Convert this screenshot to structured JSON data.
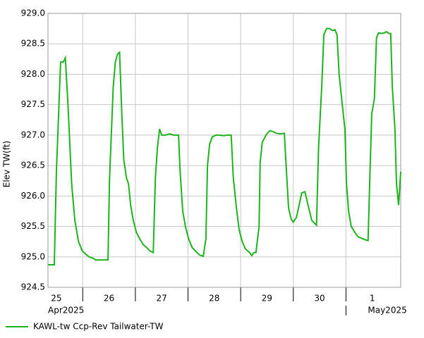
{
  "chart_data": {
    "type": "line",
    "y_label": "Elev TW(ft)",
    "xlim": [
      25.34,
      32.04
    ],
    "xticks": [
      26,
      27,
      28,
      29,
      30,
      31
    ],
    "day_labels": [
      {
        "value": 25.5,
        "label": "25"
      },
      {
        "value": 26.5,
        "label": "26"
      },
      {
        "value": 27.5,
        "label": "27"
      },
      {
        "value": 28.5,
        "label": "28"
      },
      {
        "value": 29.5,
        "label": "29"
      },
      {
        "value": 30.5,
        "label": "30"
      },
      {
        "value": 31.5,
        "label": "1"
      }
    ],
    "months": [
      {
        "value": 25.34,
        "label": "Apr2025"
      },
      {
        "value": 31,
        "label": "May2025"
      }
    ],
    "ylim": [
      924.5,
      929.0
    ],
    "yticks": [
      924.5,
      {
        "value": 925,
        "label": "925.0"
      },
      925.5,
      {
        "value": 926,
        "label": "926.0"
      },
      926.5,
      {
        "value": 927,
        "label": "927.0"
      },
      927.5,
      {
        "value": 928,
        "label": "928.0"
      },
      928.5,
      {
        "value": 929,
        "label": "929.0"
      }
    ],
    "grid": true,
    "x": [
      25.34,
      25.46,
      25.5,
      25.58,
      25.63,
      25.67,
      25.72,
      25.79,
      25.85,
      25.92,
      25.99,
      26.05,
      26.12,
      26.19,
      26.25,
      26.37,
      26.48,
      26.51,
      26.58,
      26.62,
      26.66,
      26.7,
      26.74,
      26.78,
      26.83,
      26.87,
      26.91,
      26.96,
      27.02,
      27.08,
      27.15,
      27.22,
      27.27,
      27.34,
      27.38,
      27.42,
      27.46,
      27.5,
      27.57,
      27.65,
      27.73,
      27.82,
      27.85,
      27.9,
      27.95,
      28.01,
      28.08,
      28.16,
      28.22,
      28.29,
      28.34,
      28.37,
      28.41,
      28.46,
      28.53,
      28.6,
      28.68,
      28.74,
      28.82,
      28.86,
      28.92,
      28.97,
      29.03,
      29.09,
      29.17,
      29.21,
      29.25,
      29.29,
      29.35,
      29.37,
      29.41,
      29.48,
      29.55,
      29.61,
      29.68,
      29.75,
      29.83,
      29.87,
      29.91,
      29.96,
      30.0,
      30.06,
      30.11,
      30.16,
      30.22,
      30.28,
      30.35,
      30.44,
      30.48,
      30.54,
      30.58,
      30.63,
      30.69,
      30.74,
      30.79,
      30.83,
      30.87,
      30.93,
      30.98,
      31.01,
      31.05,
      31.1,
      31.17,
      31.23,
      31.31,
      31.4,
      31.42,
      31.46,
      31.49,
      31.54,
      31.58,
      31.62,
      31.68,
      31.73,
      31.77,
      31.81,
      31.85,
      31.88,
      31.93,
      31.96,
      32.0,
      32.04
    ],
    "series": [
      {
        "name": "KAWL-tw Ccp-Rev Tailwater-TW",
        "color": "#1fb21f",
        "values": [
          924.87,
          924.87,
          926.4,
          928.2,
          928.2,
          928.27,
          927.5,
          926.2,
          925.6,
          925.25,
          925.1,
          925.05,
          925.0,
          924.98,
          924.95,
          924.95,
          924.95,
          926.3,
          927.8,
          928.2,
          928.33,
          928.36,
          927.4,
          926.6,
          926.3,
          926.2,
          925.85,
          925.6,
          925.4,
          925.3,
          925.2,
          925.15,
          925.1,
          925.07,
          926.3,
          926.8,
          927.1,
          927.0,
          927.0,
          927.02,
          927.0,
          927.0,
          926.4,
          925.75,
          925.5,
          925.3,
          925.15,
          925.08,
          925.03,
          925.01,
          925.3,
          926.5,
          926.85,
          926.97,
          927.0,
          927.0,
          926.99,
          927.0,
          927.0,
          926.3,
          925.8,
          925.45,
          925.25,
          925.13,
          925.07,
          925.02,
          925.07,
          925.07,
          925.5,
          926.55,
          926.88,
          927.0,
          927.07,
          927.06,
          927.03,
          927.02,
          927.03,
          926.4,
          925.8,
          925.62,
          925.57,
          925.65,
          925.85,
          926.05,
          926.07,
          925.85,
          925.6,
          925.52,
          926.8,
          927.8,
          928.65,
          928.75,
          928.75,
          928.72,
          928.73,
          928.65,
          928.0,
          927.5,
          927.1,
          926.2,
          925.75,
          925.5,
          925.4,
          925.33,
          925.3,
          925.27,
          925.27,
          926.5,
          927.35,
          927.6,
          928.6,
          928.68,
          928.67,
          928.68,
          928.7,
          928.67,
          928.67,
          927.8,
          927.1,
          926.2,
          925.85,
          926.4
        ]
      }
    ]
  }
}
